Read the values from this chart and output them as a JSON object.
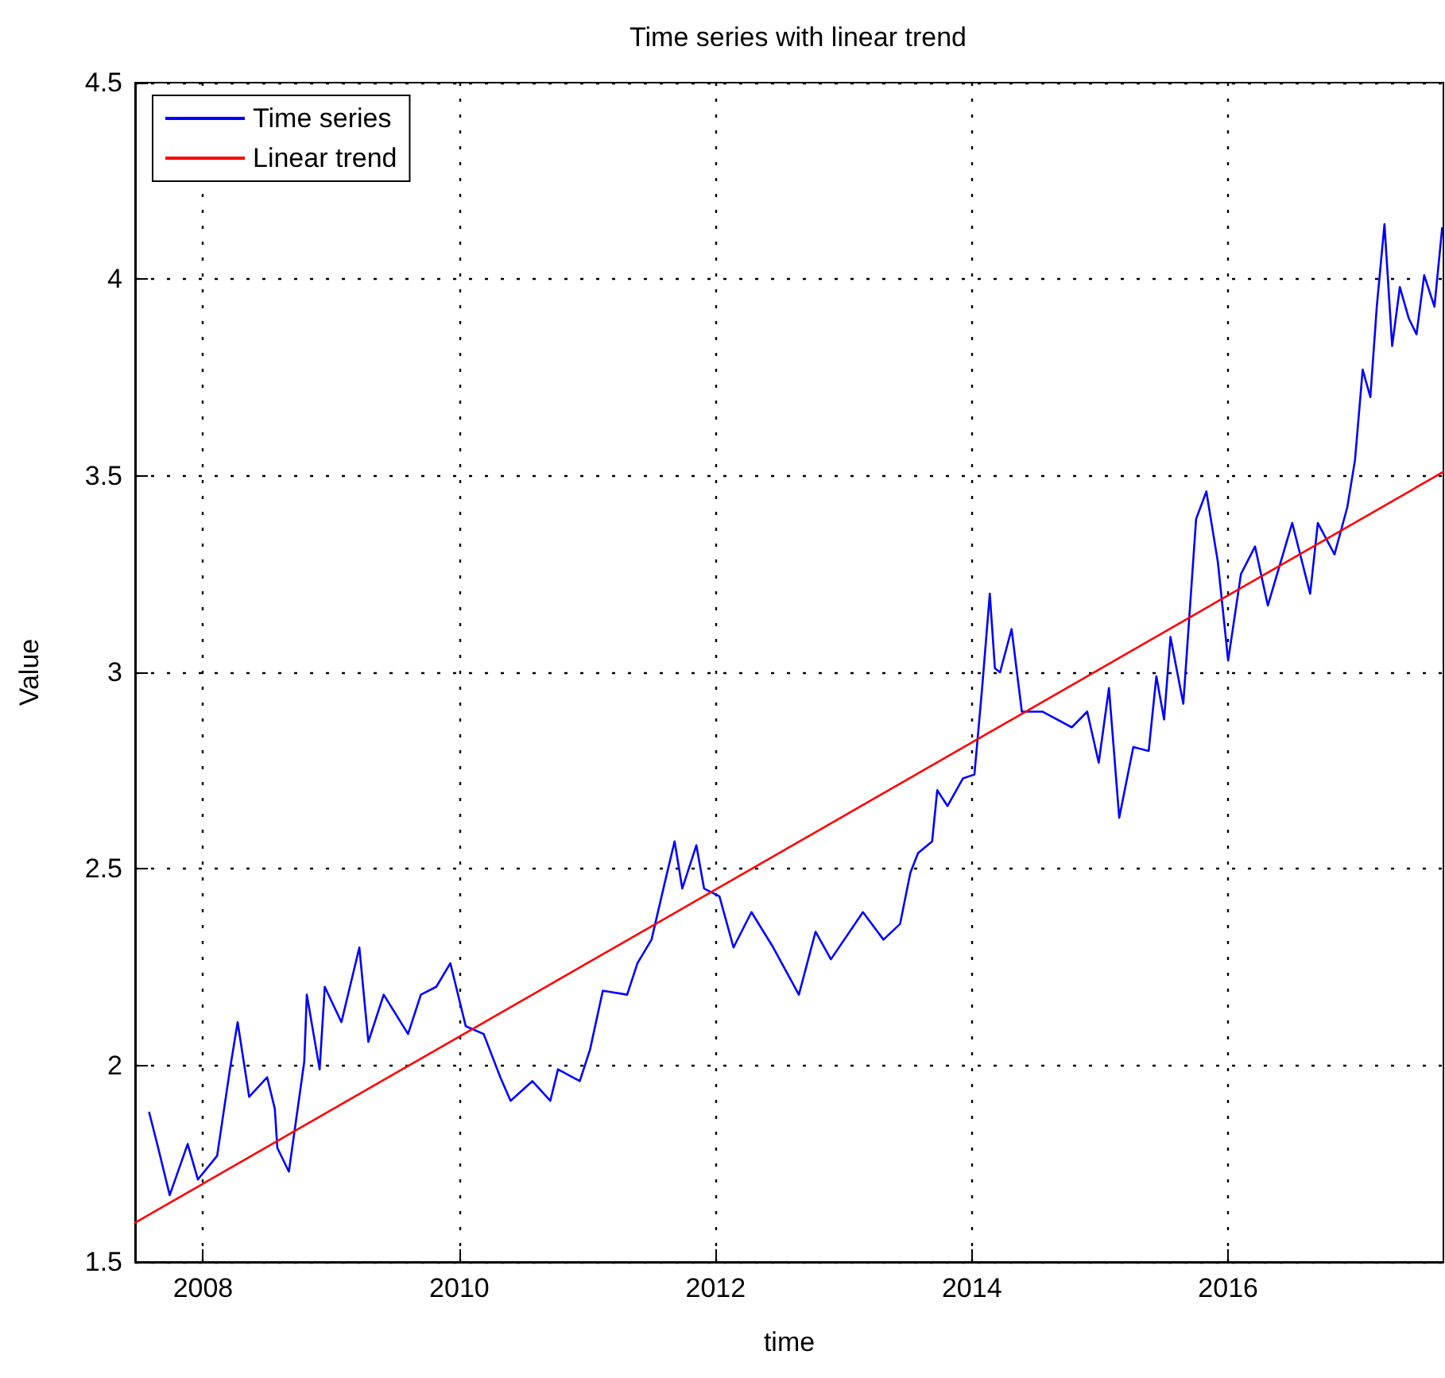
{
  "chart_data": {
    "type": "line",
    "title": "Time series with linear trend",
    "xlabel": "time",
    "ylabel": "Value",
    "xlim": [
      2007.47,
      2017.68
    ],
    "xticks": [
      2008,
      2010,
      2012,
      2014,
      2016
    ],
    "ylim": [
      1.5,
      4.5
    ],
    "yticks": [
      1.5,
      2,
      2.5,
      3,
      3.5,
      4,
      4.5
    ],
    "grid": true,
    "legend": "top left",
    "series": [
      {
        "name": "Time series",
        "color": "#0000ff",
        "x": [
          2007.58,
          2007.65,
          2007.74,
          2007.88,
          2007.96,
          2008.11,
          2008.21,
          2008.27,
          2008.36,
          2008.5,
          2008.56,
          2008.58,
          2008.67,
          2008.79,
          2008.81,
          2008.91,
          2008.95,
          2009.08,
          2009.22,
          2009.29,
          2009.41,
          2009.6,
          2009.7,
          2009.82,
          2009.93,
          2010.05,
          2010.19,
          2010.32,
          2010.4,
          2010.57,
          2010.71,
          2010.77,
          2010.94,
          2011.02,
          2011.12,
          2011.31,
          2011.39,
          2011.5,
          2011.6,
          2011.68,
          2011.74,
          2011.85,
          2011.91,
          2012.03,
          2012.14,
          2012.28,
          2012.45,
          2012.65,
          2012.78,
          2012.9,
          2013.15,
          2013.31,
          2013.44,
          2013.52,
          2013.58,
          2013.69,
          2013.73,
          2013.81,
          2013.93,
          2014.02,
          2014.08,
          2014.14,
          2014.18,
          2014.22,
          2014.31,
          2014.39,
          2014.55,
          2014.78,
          2014.9,
          2014.99,
          2015.07,
          2015.15,
          2015.26,
          2015.38,
          2015.44,
          2015.5,
          2015.55,
          2015.65,
          2015.75,
          2015.83,
          2015.92,
          2016.0,
          2016.1,
          2016.21,
          2016.31,
          2016.5,
          2016.64,
          2016.7,
          2016.83,
          2016.93,
          2016.99,
          2017.05,
          2017.11,
          2017.16,
          2017.22,
          2017.28,
          2017.34,
          2017.41,
          2017.47,
          2017.53,
          2017.61,
          2017.67
        ],
        "values": [
          1.88,
          1.79,
          1.67,
          1.8,
          1.71,
          1.77,
          1.99,
          2.11,
          1.92,
          1.97,
          1.89,
          1.79,
          1.73,
          2.01,
          2.18,
          1.99,
          2.2,
          2.11,
          2.3,
          2.06,
          2.18,
          2.08,
          2.18,
          2.2,
          2.26,
          2.1,
          2.08,
          1.97,
          1.91,
          1.96,
          1.91,
          1.99,
          1.96,
          2.04,
          2.19,
          2.18,
          2.26,
          2.32,
          2.46,
          2.57,
          2.45,
          2.56,
          2.45,
          2.43,
          2.3,
          2.39,
          2.3,
          2.18,
          2.34,
          2.27,
          2.39,
          2.32,
          2.36,
          2.49,
          2.54,
          2.57,
          2.7,
          2.66,
          2.73,
          2.74,
          2.96,
          3.2,
          3.01,
          3.0,
          3.11,
          2.9,
          2.9,
          2.86,
          2.9,
          2.77,
          2.96,
          2.63,
          2.81,
          2.8,
          2.99,
          2.88,
          3.09,
          2.92,
          3.39,
          3.46,
          3.28,
          3.03,
          3.25,
          3.32,
          3.17,
          3.38,
          3.2,
          3.38,
          3.3,
          3.42,
          3.54,
          3.77,
          3.7,
          3.93,
          4.14,
          3.83,
          3.98,
          3.9,
          3.86,
          4.01,
          3.93,
          4.13
        ]
      },
      {
        "name": "Linear trend",
        "color": "#ff0000",
        "x": [
          2007.47,
          2017.68
        ],
        "values": [
          1.6,
          3.51
        ]
      }
    ]
  }
}
